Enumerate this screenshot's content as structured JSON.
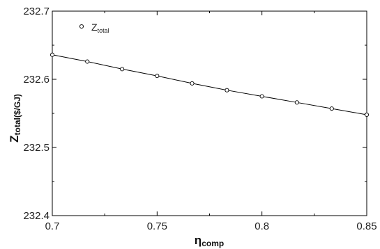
{
  "chart_data": {
    "type": "line",
    "xlabel": "η",
    "xlabel_sub": "comp",
    "ylabel": "Z",
    "ylabel_sub": "total($/GJ)",
    "xlim": [
      0.7,
      0.85
    ],
    "ylim": [
      232.4,
      232.7
    ],
    "x_ticks": [
      "0.7",
      "0.75",
      "0.8",
      "0.85"
    ],
    "y_ticks": [
      "232.4",
      "232.5",
      "232.6",
      "232.7"
    ],
    "grid": false,
    "legend_position": "top-left",
    "series": [
      {
        "name": "Z",
        "name_sub": "total",
        "marker": "open-circle",
        "color": "#000000",
        "x": [
          0.7,
          0.7167,
          0.7333,
          0.75,
          0.7667,
          0.7833,
          0.8,
          0.8167,
          0.8333,
          0.85
        ],
        "y": [
          232.636,
          232.626,
          232.615,
          232.605,
          232.594,
          232.584,
          232.575,
          232.566,
          232.557,
          232.548
        ]
      }
    ]
  }
}
